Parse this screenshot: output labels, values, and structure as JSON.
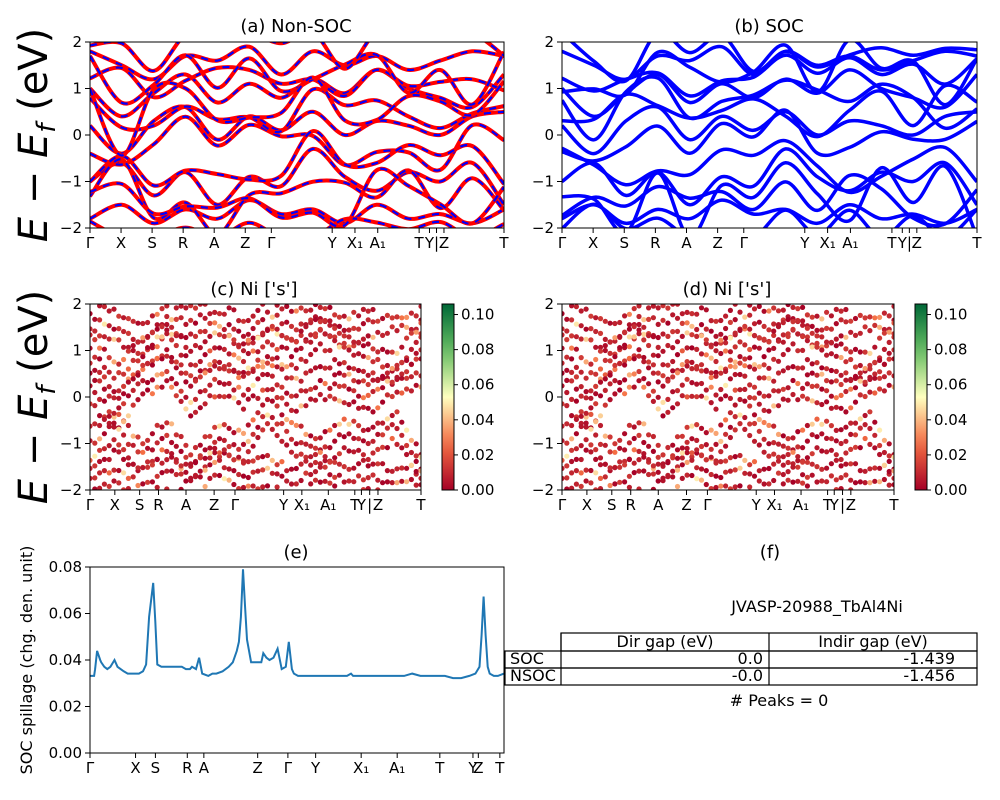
{
  "panels": {
    "a": {
      "title": "(a) Non-SOC",
      "ylabel": "E − E_f (eV)",
      "ylim": [
        -2,
        2
      ],
      "yticks": [
        "2",
        "1",
        "0",
        "−1",
        "−2"
      ],
      "kpath": [
        "Γ",
        "X",
        "S",
        "R",
        "A",
        "Z",
        "Γ",
        "Y",
        "X₁",
        "A₁",
        "T",
        "Y",
        "|",
        "Z",
        "T"
      ],
      "colors": {
        "up": "#0000ff",
        "down": "#ff0000"
      }
    },
    "b": {
      "title": "(b) SOC",
      "ylim": [
        -2,
        2
      ],
      "yticks": [
        "2",
        "1",
        "0",
        "−1",
        "−2"
      ],
      "kpath": [
        "Γ",
        "X",
        "S",
        "R",
        "A",
        "Z",
        "Γ",
        "Y",
        "X₁",
        "A₁",
        "T",
        "Y",
        "|",
        "Z",
        "T"
      ],
      "colors": {
        "band": "#0000ff"
      }
    },
    "c": {
      "title": "(c)  Ni ['s']",
      "ylabel": "E − E_f (eV)",
      "ylim": [
        -2,
        2
      ],
      "yticks": [
        "2",
        "1",
        "0",
        "−1",
        "−2"
      ],
      "kpath": [
        "Γ",
        "X",
        "S",
        "R",
        "A",
        "Z",
        "Γ",
        "Y",
        "X₁",
        "A₁",
        "T",
        "Y",
        "|",
        "Z",
        "T"
      ],
      "colorbar_ticks": [
        "0.10",
        "0.08",
        "0.06",
        "0.04",
        "0.02",
        "0.00"
      ],
      "colormap": "RdYlGn"
    },
    "d": {
      "title": "(d) Ni ['s']",
      "ylim": [
        -2,
        2
      ],
      "yticks": [
        "2",
        "1",
        "0",
        "−1",
        "−2"
      ],
      "kpath": [
        "Γ",
        "X",
        "S",
        "R",
        "A",
        "Z",
        "Γ",
        "Y",
        "X₁",
        "A₁",
        "T",
        "Y",
        "|",
        "Z",
        "T"
      ],
      "colorbar_ticks": [
        "0.10",
        "0.08",
        "0.06",
        "0.04",
        "0.02",
        "0.00"
      ],
      "colormap": "RdYlGn"
    },
    "e": {
      "title": "(e)",
      "ylabel": "SOC spillage (chg. den. unit)",
      "yticks": [
        "0.08",
        "0.06",
        "0.04",
        "0.02",
        "0.00"
      ],
      "kpath": [
        "Γ",
        "X",
        "S",
        "R",
        "A",
        "Z",
        "Γ",
        "Y",
        "X₁",
        "A₁",
        "T",
        "Y",
        "Z",
        "T"
      ],
      "color": "#1f77b4"
    },
    "f": {
      "title": "(f)",
      "material": "JVASP-20988_TbAl4Ni",
      "table": {
        "headers": [
          "",
          "Dir gap (eV)",
          "Indir gap (eV)"
        ],
        "rows": [
          {
            "label": "SOC",
            "dir": "0.0",
            "indir": "-1.439"
          },
          {
            "label": "NSOC",
            "dir": "-0.0",
            "indir": "-1.456"
          }
        ]
      },
      "peaks": "# Peaks = 0"
    }
  },
  "chart_data": [
    {
      "type": "line",
      "title": "(a) Non-SOC",
      "ylabel": "E − E_f (eV)",
      "ylim": [
        -2,
        2
      ],
      "x": [
        "Γ",
        "X",
        "S",
        "R",
        "A",
        "Z",
        "Γ",
        "Y",
        "X₁",
        "A₁",
        "T",
        "Y",
        "Z",
        "T"
      ],
      "series": [
        {
          "values": [
            1.8,
            1.5,
            1.2,
            1.7,
            1.6,
            1.9,
            1.3,
            1.8,
            1.5,
            1.7,
            1.4,
            1.6,
            1.8,
            1.7
          ]
        },
        {
          "values": [
            1.0,
            0.4,
            0.9,
            1.3,
            0.7,
            1.1,
            0.8,
            1.2,
            0.9,
            1.4,
            1.0,
            0.8,
            0.6,
            1.3
          ]
        },
        {
          "values": [
            0.2,
            -0.4,
            0.3,
            0.6,
            -0.1,
            0.4,
            0.1,
            0.5,
            0.0,
            0.3,
            0.2,
            0.0,
            0.4,
            0.5
          ]
        },
        {
          "values": [
            -1.0,
            -0.6,
            -1.3,
            -0.8,
            -1.5,
            -0.9,
            -1.1,
            -0.3,
            -0.9,
            -1.2,
            -0.8,
            -1.0,
            -0.6,
            -1.5
          ]
        },
        {
          "values": [
            -1.8,
            -1.5,
            -1.9,
            -1.6,
            -1.8,
            -1.4,
            -1.7,
            -1.6,
            -1.9,
            -1.5,
            -1.8,
            -1.7,
            -1.9,
            -1.6
          ]
        }
      ]
    },
    {
      "type": "line",
      "title": "(b) SOC",
      "ylim": [
        -2,
        2
      ],
      "x": [
        "Γ",
        "X",
        "S",
        "R",
        "A",
        "Z",
        "Γ",
        "Y",
        "X₁",
        "A₁",
        "T",
        "Y",
        "Z",
        "T"
      ],
      "series": [
        {
          "values": [
            1.8,
            1.5,
            1.2,
            1.7,
            1.6,
            1.9,
            1.3,
            1.8,
            1.5,
            1.7,
            1.4,
            1.6,
            1.8,
            1.7
          ]
        },
        {
          "values": [
            1.0,
            0.4,
            0.9,
            1.3,
            0.7,
            1.1,
            0.8,
            1.2,
            0.9,
            1.4,
            1.0,
            0.8,
            0.6,
            1.3
          ]
        },
        {
          "values": [
            0.2,
            -0.4,
            0.3,
            0.6,
            -0.1,
            0.4,
            0.1,
            0.5,
            0.0,
            0.3,
            0.2,
            0.0,
            0.4,
            0.5
          ]
        },
        {
          "values": [
            -1.0,
            -0.6,
            -1.3,
            -0.8,
            -1.5,
            -0.9,
            -1.1,
            -0.3,
            -0.9,
            -1.2,
            -0.8,
            -1.0,
            -0.6,
            -1.5
          ]
        },
        {
          "values": [
            -1.8,
            -1.5,
            -1.9,
            -1.6,
            -1.8,
            -1.4,
            -1.7,
            -1.6,
            -1.9,
            -1.5,
            -1.8,
            -1.7,
            -1.9,
            -1.6
          ]
        }
      ]
    },
    {
      "type": "scatter",
      "title": "(c)  Ni ['s']",
      "ylim": [
        -2,
        2
      ],
      "colorbar_range": [
        0.0,
        0.1
      ]
    },
    {
      "type": "scatter",
      "title": "(d) Ni ['s']",
      "ylim": [
        -2,
        2
      ],
      "colorbar_range": [
        0.0,
        0.1
      ]
    },
    {
      "type": "line",
      "title": "(e)",
      "ylabel": "SOC spillage (chg. den. unit)",
      "ylim": [
        0,
        0.082
      ],
      "x": [
        0,
        2,
        4,
        5,
        7,
        10,
        11,
        14,
        17,
        20,
        24,
        27,
        30,
        33,
        37,
        40,
        44,
        48,
        52,
        55,
        58,
        62,
        64,
        66,
        70,
        74,
        78,
        82,
        86,
        90,
        94,
        96,
        98,
        100,
        104,
        107,
        110,
        116,
        120,
        124,
        130,
        136,
        140,
        144,
        146,
        148,
        150,
        152,
        154,
        158,
        162,
        168,
        170,
        173,
        176,
        180,
        184,
        188,
        192,
        195,
        198,
        200,
        204,
        208,
        212,
        220,
        228,
        236,
        240,
        244,
        248,
        252,
        256,
        258,
        260,
        262,
        264,
        266,
        270,
        276,
        284,
        292,
        300,
        308,
        316,
        324,
        332,
        340,
        348,
        356,
        364,
        372,
        378,
        382,
        384,
        386,
        388,
        390,
        392,
        396,
        400,
        406
      ],
      "values": [
        0.034,
        0.034,
        0.034,
        0.037,
        0.045,
        0.041,
        0.04,
        0.038,
        0.037,
        0.038,
        0.041,
        0.038,
        0.037,
        0.036,
        0.035,
        0.035,
        0.035,
        0.035,
        0.036,
        0.039,
        0.06,
        0.075,
        0.058,
        0.039,
        0.038,
        0.038,
        0.038,
        0.038,
        0.038,
        0.038,
        0.037,
        0.037,
        0.037,
        0.038,
        0.037,
        0.042,
        0.035,
        0.034,
        0.035,
        0.035,
        0.036,
        0.038,
        0.04,
        0.045,
        0.049,
        0.06,
        0.081,
        0.065,
        0.05,
        0.04,
        0.04,
        0.04,
        0.044,
        0.042,
        0.041,
        0.042,
        0.046,
        0.037,
        0.038,
        0.049,
        0.037,
        0.035,
        0.034,
        0.034,
        0.034,
        0.034,
        0.034,
        0.034,
        0.034,
        0.034,
        0.034,
        0.034,
        0.035,
        0.034,
        0.034,
        0.034,
        0.034,
        0.034,
        0.034,
        0.034,
        0.034,
        0.034,
        0.034,
        0.034,
        0.035,
        0.034,
        0.034,
        0.034,
        0.034,
        0.033,
        0.033,
        0.034,
        0.035,
        0.038,
        0.052,
        0.069,
        0.052,
        0.038,
        0.035,
        0.034,
        0.034,
        0.035
      ]
    }
  ]
}
